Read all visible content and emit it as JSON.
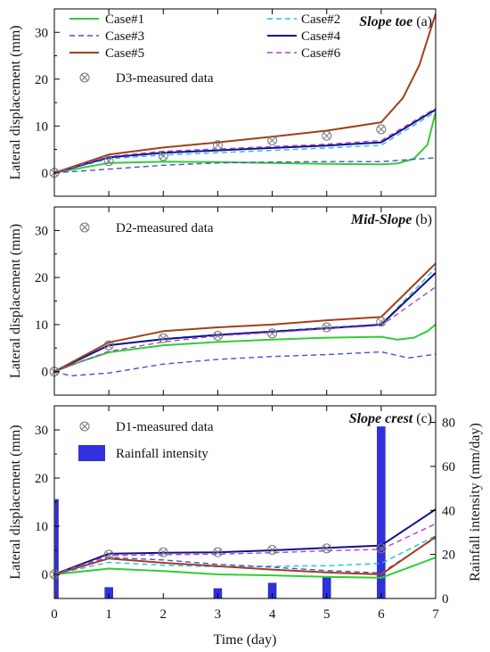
{
  "chart_data": [
    {
      "type": "line",
      "panel_label": "(a)",
      "title": "Slope toe",
      "xlabel": "",
      "ylabel": "Lateral displacement (mm)",
      "xlim": [
        0,
        7
      ],
      "ylim": [
        -5,
        35
      ],
      "yticks": [
        0,
        10,
        20,
        30
      ],
      "xticks": [
        0,
        1,
        2,
        3,
        4,
        5,
        6,
        7
      ],
      "legend_placement": "top",
      "series": [
        {
          "name": "Case#1",
          "color": "#33cc33",
          "dash": "solid",
          "x": [
            0,
            1,
            2,
            3,
            4,
            5,
            6,
            6.3,
            6.6,
            6.85,
            7
          ],
          "y": [
            0,
            2.1,
            2.4,
            2.3,
            2.1,
            1.9,
            1.8,
            2.0,
            3.0,
            6.0,
            13
          ]
        },
        {
          "name": "Case#2",
          "color": "#22bbee",
          "dash": "dashed",
          "x": [
            0,
            1,
            2,
            3,
            4,
            5,
            6,
            7
          ],
          "y": [
            0,
            3.0,
            3.8,
            4.3,
            4.8,
            5.3,
            5.9,
            13
          ]
        },
        {
          "name": "Case#3",
          "color": "#4455cc",
          "dash": "dashed",
          "x": [
            0,
            1,
            2,
            3,
            4,
            5,
            6,
            7
          ],
          "y": [
            0,
            0.8,
            1.6,
            2.1,
            2.3,
            2.4,
            2.4,
            3.2
          ]
        },
        {
          "name": "Case#4",
          "color": "#10108a",
          "dash": "solid",
          "x": [
            0,
            1,
            2,
            3,
            4,
            5,
            6,
            7
          ],
          "y": [
            0,
            3.3,
            4.3,
            4.8,
            5.3,
            5.8,
            6.5,
            13.5
          ]
        },
        {
          "name": "Case#5",
          "color": "#a0401c",
          "dash": "solid",
          "x": [
            0,
            1,
            2,
            3,
            4,
            5,
            6,
            6.4,
            6.7,
            7
          ],
          "y": [
            0,
            3.9,
            5.4,
            6.5,
            7.7,
            9.0,
            10.8,
            16,
            23,
            34
          ]
        },
        {
          "name": "Case#6",
          "color": "#aa44cc",
          "dash": "dashed",
          "x": [
            0,
            1,
            2,
            3,
            4,
            5,
            6,
            7
          ],
          "y": [
            0,
            3.5,
            4.6,
            5.1,
            5.6,
            6.1,
            6.9,
            13.8
          ]
        }
      ],
      "measured": {
        "name": "D3-measured data",
        "x": [
          0,
          1,
          2,
          3,
          4,
          5,
          6
        ],
        "y": [
          0,
          2.5,
          3.6,
          5.9,
          6.9,
          7.9,
          9.3
        ]
      }
    },
    {
      "type": "line",
      "panel_label": "(b)",
      "title": "Mid-Slope",
      "xlabel": "",
      "ylabel": "Lateral displacement (mm)",
      "xlim": [
        0,
        7
      ],
      "ylim": [
        -5,
        35
      ],
      "yticks": [
        0,
        10,
        20,
        30
      ],
      "xticks": [
        0,
        1,
        2,
        3,
        4,
        5,
        6,
        7
      ],
      "legend_placement": "top-left",
      "series": [
        {
          "name": "Case#1",
          "color": "#33cc33",
          "dash": "solid",
          "x": [
            0,
            0.5,
            1,
            2,
            3,
            4,
            5,
            6,
            6.3,
            6.6,
            6.85,
            7
          ],
          "y": [
            0,
            2.2,
            4.1,
            5.6,
            6.3,
            6.8,
            7.2,
            7.4,
            6.8,
            7.2,
            8.6,
            10
          ]
        },
        {
          "name": "Case#2",
          "color": "#22bbee",
          "dash": "dashed",
          "x": [
            0,
            1,
            2,
            3,
            4,
            5,
            6,
            7
          ],
          "y": [
            0,
            5.5,
            7.0,
            7.9,
            8.6,
            9.4,
            10.0,
            22
          ]
        },
        {
          "name": "Case#3",
          "color": "#4455cc",
          "dash": "dashed",
          "x": [
            0,
            0.3,
            1,
            2,
            3,
            4,
            5,
            6,
            6.5,
            7
          ],
          "y": [
            0,
            -0.9,
            -0.3,
            1.6,
            2.6,
            3.2,
            3.6,
            4.2,
            2.9,
            3.7
          ]
        },
        {
          "name": "Case#4",
          "color": "#10108a",
          "dash": "solid",
          "x": [
            0,
            1,
            2,
            3,
            4,
            5,
            6,
            7
          ],
          "y": [
            0,
            5.6,
            6.9,
            7.8,
            8.5,
            9.2,
            10.0,
            21
          ]
        },
        {
          "name": "Case#5",
          "color": "#a0401c",
          "dash": "solid",
          "x": [
            0,
            1,
            2,
            3,
            4,
            5,
            6,
            7
          ],
          "y": [
            0,
            6.2,
            8.6,
            9.4,
            10.0,
            10.9,
            11.6,
            23
          ]
        },
        {
          "name": "Case#6",
          "color": "#aa44cc",
          "dash": "dashed",
          "x": [
            0,
            1,
            2,
            3,
            4,
            5,
            6,
            7
          ],
          "y": [
            0,
            4.3,
            6.3,
            7.6,
            8.3,
            9.1,
            9.8,
            18
          ]
        }
      ],
      "measured": {
        "name": "D2-measured data",
        "x": [
          0,
          1,
          2,
          3,
          4,
          5,
          6
        ],
        "y": [
          0,
          5.6,
          7.1,
          7.6,
          8.1,
          9.4,
          10.6
        ]
      }
    },
    {
      "type": "bar+line",
      "panel_label": "(c)",
      "title": "Slope crest",
      "xlabel": "Time (day)",
      "ylabel": "Lateral displacement (mm)",
      "y2label": "Rainfall intensity (mm/day)",
      "xlim": [
        0,
        7
      ],
      "ylim": [
        -5,
        35
      ],
      "y2lim": [
        0,
        87.5
      ],
      "yticks": [
        0,
        10,
        20,
        30
      ],
      "y2ticks": [
        0,
        20,
        40,
        60,
        80
      ],
      "xticks": [
        0,
        1,
        2,
        3,
        4,
        5,
        6,
        7
      ],
      "legend_placement": "top-left",
      "series": [
        {
          "name": "Case#1",
          "color": "#33cc33",
          "dash": "solid",
          "x": [
            0,
            1,
            2,
            3,
            4,
            5,
            6,
            7
          ],
          "y": [
            0,
            1.2,
            0.7,
            0.0,
            -0.2,
            -0.5,
            -0.7,
            3.5
          ]
        },
        {
          "name": "Case#2",
          "color": "#22bbee",
          "dash": "dashed",
          "x": [
            0,
            1,
            2,
            3,
            4,
            5,
            6,
            7
          ],
          "y": [
            0,
            2.5,
            1.9,
            1.6,
            1.7,
            1.8,
            2.3,
            8.0
          ]
        },
        {
          "name": "Case#3",
          "color": "#4455cc",
          "dash": "dashed",
          "x": [
            0,
            1,
            2,
            3,
            4,
            5,
            6,
            7
          ],
          "y": [
            0,
            3.5,
            3.0,
            2.1,
            1.5,
            0.8,
            0.3,
            7.6
          ]
        },
        {
          "name": "Case#4",
          "color": "#10108a",
          "dash": "solid",
          "x": [
            0,
            1,
            2,
            3,
            4,
            5,
            6,
            7
          ],
          "y": [
            0,
            4.3,
            4.5,
            4.6,
            5.0,
            5.5,
            6.0,
            13.5
          ]
        },
        {
          "name": "Case#5",
          "color": "#a0401c",
          "dash": "solid",
          "x": [
            0,
            1,
            2,
            3,
            4,
            5,
            6,
            7
          ],
          "y": [
            0,
            3.3,
            2.4,
            1.7,
            1.0,
            0.4,
            0.0,
            7.8
          ]
        },
        {
          "name": "Case#6",
          "color": "#aa44cc",
          "dash": "dashed",
          "x": [
            0,
            1,
            2,
            3,
            4,
            5,
            6,
            7
          ],
          "y": [
            0,
            3.9,
            4.1,
            4.2,
            4.5,
            4.9,
            5.2,
            10.5
          ]
        }
      ],
      "measured": {
        "name": "D1-measured data",
        "x": [
          0,
          1,
          2,
          3,
          4,
          5,
          6
        ],
        "y": [
          0,
          4.1,
          4.6,
          4.6,
          5.1,
          5.4,
          5.4
        ]
      },
      "bars": {
        "name": "Rainfall intensity",
        "color": "#3030dd",
        "x": [
          0,
          1,
          3,
          4,
          5,
          6
        ],
        "values": [
          45,
          5,
          4.5,
          7,
          10,
          78
        ]
      }
    }
  ],
  "legend_names": [
    "Case#1",
    "Case#2",
    "Case#3",
    "Case#4",
    "Case#5",
    "Case#6"
  ]
}
